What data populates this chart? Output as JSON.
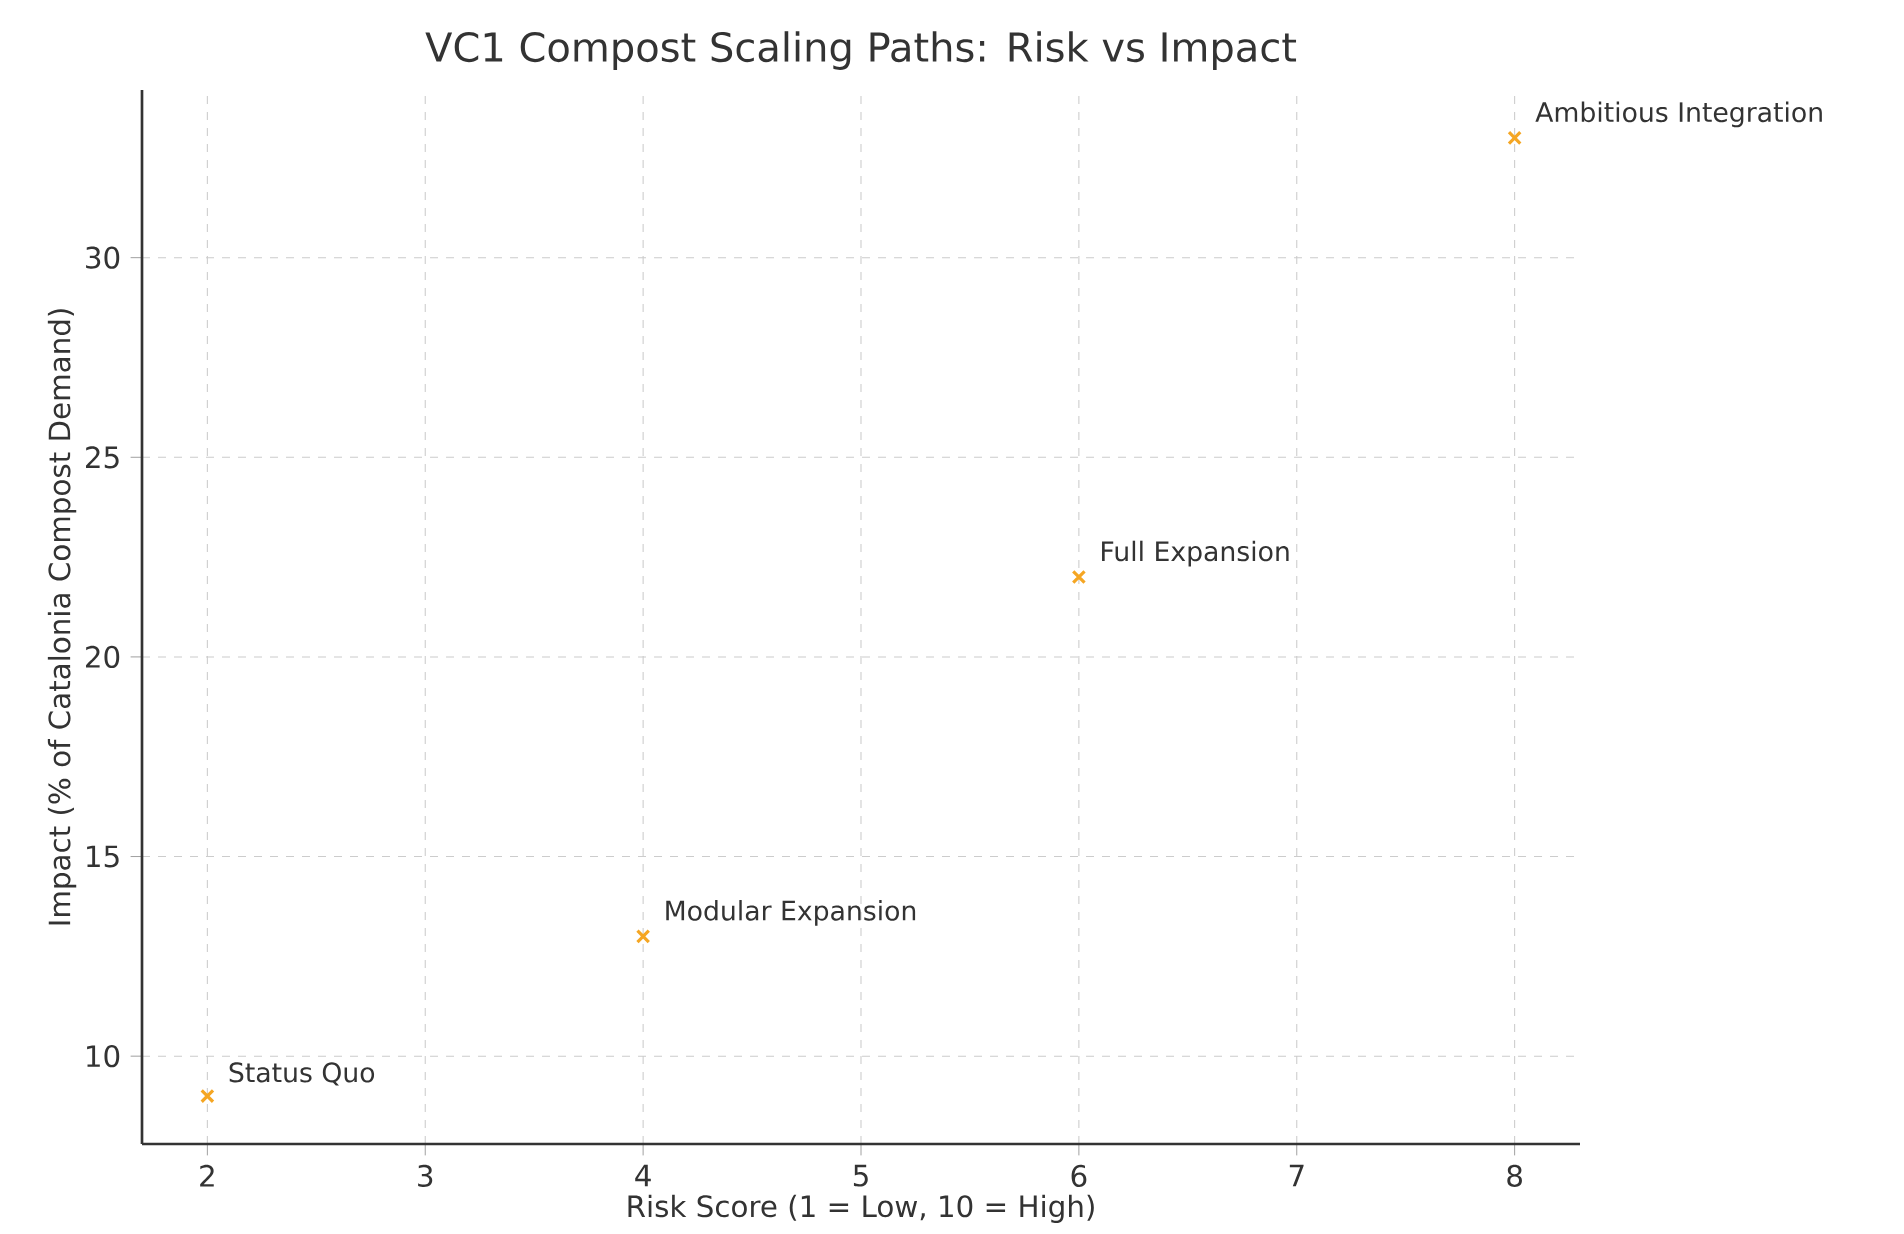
{
  "chart_data": {
    "type": "scatter",
    "title": "VC1 Compost Scaling Paths: Risk vs Impact",
    "xlabel": "Risk Score (1 = Low, 10 = High)",
    "ylabel": "Impact (% of Catalonia Compost Demand)",
    "series": [
      {
        "color": "#f5a623",
        "x": [
          2,
          4,
          6,
          8
        ],
        "values": [
          9,
          13,
          22,
          33
        ]
      }
    ],
    "xlim": [
      1.7,
      8.3
    ],
    "ylim": [
      7.8,
      34.2
    ],
    "xticks": [
      2,
      3,
      4,
      5,
      6,
      7,
      8
    ],
    "yticks": [
      10,
      15,
      20,
      25,
      30
    ],
    "grid": true,
    "marker": "cross",
    "annotations": [
      {
        "text": "Status Quo",
        "x": 2,
        "y": 9
      },
      {
        "text": "Modular Expansion",
        "x": 4,
        "y": 13
      },
      {
        "text": "Full Expansion",
        "x": 6,
        "y": 22
      },
      {
        "text": "Ambitious Integration",
        "x": 8,
        "y": 33
      }
    ]
  }
}
